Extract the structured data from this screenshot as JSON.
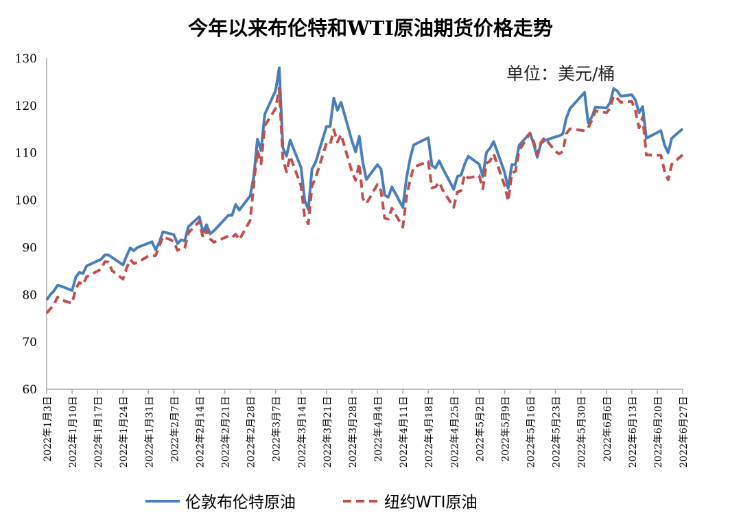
{
  "chart_data": {
    "type": "line",
    "title": "今年以来布伦特和WTI原油期货价格走势",
    "unit_label": "单位：美元/桶",
    "xlabel": "",
    "ylabel": "",
    "ylim": [
      60,
      130
    ],
    "yticks": [
      60,
      70,
      80,
      90,
      100,
      110,
      120,
      130
    ],
    "xticks": [
      "2022年1月3日",
      "2022年1月10日",
      "2022年1月17日",
      "2022年1月24日",
      "2022年1月31日",
      "2022年2月7日",
      "2022年2月14日",
      "2022年2月21日",
      "2022年2月28日",
      "2022年3月7日",
      "2022年3月14日",
      "2022年3月21日",
      "2022年3月28日",
      "2022年4月4日",
      "2022年4月11日",
      "2022年4月18日",
      "2022年4月25日",
      "2022年5月2日",
      "2022年5月9日",
      "2022年5月16日",
      "2022年5月23日",
      "2022年5月30日",
      "2022年6月6日",
      "2022年6月13日",
      "2022年6月20日",
      "2022年6月27日"
    ],
    "grid": false,
    "legend_position": "bottom",
    "series": [
      {
        "name": "伦敦布伦特原油",
        "color": "#4a7ebb",
        "style": "solid",
        "points": [
          [
            "2022-01-03",
            78.9
          ],
          [
            "2022-01-04",
            80.0
          ],
          [
            "2022-01-05",
            80.8
          ],
          [
            "2022-01-06",
            82.0
          ],
          [
            "2022-01-07",
            81.8
          ],
          [
            "2022-01-10",
            80.9
          ],
          [
            "2022-01-11",
            83.7
          ],
          [
            "2022-01-12",
            84.7
          ],
          [
            "2022-01-13",
            84.5
          ],
          [
            "2022-01-14",
            86.1
          ],
          [
            "2022-01-18",
            87.5
          ],
          [
            "2022-01-19",
            88.4
          ],
          [
            "2022-01-20",
            88.4
          ],
          [
            "2022-01-21",
            87.9
          ],
          [
            "2022-01-24",
            86.3
          ],
          [
            "2022-01-25",
            88.2
          ],
          [
            "2022-01-26",
            89.9
          ],
          [
            "2022-01-27",
            89.3
          ],
          [
            "2022-01-28",
            90.0
          ],
          [
            "2022-02-01",
            91.2
          ],
          [
            "2022-02-02",
            89.5
          ],
          [
            "2022-02-03",
            91.1
          ],
          [
            "2022-02-04",
            93.3
          ],
          [
            "2022-02-07",
            92.7
          ],
          [
            "2022-02-08",
            90.8
          ],
          [
            "2022-02-09",
            91.6
          ],
          [
            "2022-02-10",
            91.4
          ],
          [
            "2022-02-11",
            94.4
          ],
          [
            "2022-02-14",
            96.5
          ],
          [
            "2022-02-15",
            93.3
          ],
          [
            "2022-02-16",
            94.8
          ],
          [
            "2022-02-17",
            92.9
          ],
          [
            "2022-02-18",
            93.5
          ],
          [
            "2022-02-22",
            96.8
          ],
          [
            "2022-02-23",
            96.8
          ],
          [
            "2022-02-24",
            99.1
          ],
          [
            "2022-02-25",
            97.9
          ],
          [
            "2022-02-28",
            100.9
          ],
          [
            "2022-03-01",
            105.0
          ],
          [
            "2022-03-02",
            112.9
          ],
          [
            "2022-03-03",
            110.5
          ],
          [
            "2022-03-04",
            118.1
          ],
          [
            "2022-03-07",
            123.2
          ],
          [
            "2022-03-08",
            128.0
          ],
          [
            "2022-03-09",
            111.1
          ],
          [
            "2022-03-10",
            109.3
          ],
          [
            "2022-03-11",
            112.7
          ],
          [
            "2022-03-14",
            106.9
          ],
          [
            "2022-03-15",
            99.9
          ],
          [
            "2022-03-16",
            98.0
          ],
          [
            "2022-03-17",
            106.6
          ],
          [
            "2022-03-18",
            108.0
          ],
          [
            "2022-03-21",
            115.6
          ],
          [
            "2022-03-22",
            115.6
          ],
          [
            "2022-03-23",
            121.6
          ],
          [
            "2022-03-24",
            119.0
          ],
          [
            "2022-03-25",
            120.7
          ],
          [
            "2022-03-28",
            112.5
          ],
          [
            "2022-03-29",
            110.2
          ],
          [
            "2022-03-30",
            113.5
          ],
          [
            "2022-03-31",
            107.9
          ],
          [
            "2022-04-01",
            104.4
          ],
          [
            "2022-04-04",
            107.5
          ],
          [
            "2022-04-05",
            106.6
          ],
          [
            "2022-04-06",
            101.1
          ],
          [
            "2022-04-07",
            100.6
          ],
          [
            "2022-04-08",
            102.8
          ],
          [
            "2022-04-11",
            98.5
          ],
          [
            "2022-04-12",
            104.6
          ],
          [
            "2022-04-13",
            108.8
          ],
          [
            "2022-04-14",
            111.7
          ],
          [
            "2022-04-18",
            113.2
          ],
          [
            "2022-04-19",
            107.3
          ],
          [
            "2022-04-20",
            106.8
          ],
          [
            "2022-04-21",
            108.3
          ],
          [
            "2022-04-22",
            106.7
          ],
          [
            "2022-04-25",
            102.3
          ],
          [
            "2022-04-26",
            105.0
          ],
          [
            "2022-04-27",
            105.3
          ],
          [
            "2022-04-28",
            107.6
          ],
          [
            "2022-04-29",
            109.3
          ],
          [
            "2022-05-02",
            107.6
          ],
          [
            "2022-05-03",
            105.0
          ],
          [
            "2022-05-04",
            110.1
          ],
          [
            "2022-05-05",
            111.0
          ],
          [
            "2022-05-06",
            112.4
          ],
          [
            "2022-05-09",
            105.9
          ],
          [
            "2022-05-10",
            102.5
          ],
          [
            "2022-05-11",
            107.5
          ],
          [
            "2022-05-12",
            107.5
          ],
          [
            "2022-05-13",
            111.6
          ],
          [
            "2022-05-16",
            114.2
          ],
          [
            "2022-05-17",
            111.9
          ],
          [
            "2022-05-18",
            109.1
          ],
          [
            "2022-05-19",
            112.0
          ],
          [
            "2022-05-20",
            112.6
          ],
          [
            "2022-05-23",
            113.4
          ],
          [
            "2022-05-24",
            113.6
          ],
          [
            "2022-05-25",
            114.0
          ],
          [
            "2022-05-26",
            117.4
          ],
          [
            "2022-05-27",
            119.4
          ],
          [
            "2022-05-31",
            122.8
          ],
          [
            "2022-06-01",
            116.3
          ],
          [
            "2022-06-02",
            117.6
          ],
          [
            "2022-06-03",
            119.7
          ],
          [
            "2022-06-06",
            119.5
          ],
          [
            "2022-06-07",
            120.6
          ],
          [
            "2022-06-08",
            123.6
          ],
          [
            "2022-06-09",
            123.1
          ],
          [
            "2022-06-10",
            122.0
          ],
          [
            "2022-06-13",
            122.3
          ],
          [
            "2022-06-14",
            121.2
          ],
          [
            "2022-06-15",
            118.5
          ],
          [
            "2022-06-16",
            119.8
          ],
          [
            "2022-06-17",
            113.1
          ],
          [
            "2022-06-21",
            114.7
          ],
          [
            "2022-06-22",
            111.7
          ],
          [
            "2022-06-23",
            110.0
          ],
          [
            "2022-06-24",
            113.1
          ],
          [
            "2022-06-27",
            115.1
          ]
        ]
      },
      {
        "name": "纽约WTI原油",
        "color": "#c0504d",
        "style": "dashed",
        "points": [
          [
            "2022-01-03",
            76.1
          ],
          [
            "2022-01-04",
            77.0
          ],
          [
            "2022-01-05",
            77.9
          ],
          [
            "2022-01-06",
            79.5
          ],
          [
            "2022-01-07",
            78.9
          ],
          [
            "2022-01-10",
            78.2
          ],
          [
            "2022-01-11",
            81.2
          ],
          [
            "2022-01-12",
            82.6
          ],
          [
            "2022-01-13",
            82.1
          ],
          [
            "2022-01-14",
            83.8
          ],
          [
            "2022-01-18",
            85.4
          ],
          [
            "2022-01-19",
            87.0
          ],
          [
            "2022-01-20",
            86.9
          ],
          [
            "2022-01-21",
            85.1
          ],
          [
            "2022-01-24",
            83.3
          ],
          [
            "2022-01-25",
            85.6
          ],
          [
            "2022-01-26",
            87.4
          ],
          [
            "2022-01-27",
            86.6
          ],
          [
            "2022-01-28",
            86.8
          ],
          [
            "2022-01-31",
            88.2
          ],
          [
            "2022-02-01",
            88.2
          ],
          [
            "2022-02-02",
            88.3
          ],
          [
            "2022-02-03",
            90.3
          ],
          [
            "2022-02-04",
            92.3
          ],
          [
            "2022-02-07",
            91.3
          ],
          [
            "2022-02-08",
            89.4
          ],
          [
            "2022-02-09",
            89.7
          ],
          [
            "2022-02-10",
            89.9
          ],
          [
            "2022-02-11",
            93.1
          ],
          [
            "2022-02-14",
            95.5
          ],
          [
            "2022-02-15",
            92.1
          ],
          [
            "2022-02-16",
            93.7
          ],
          [
            "2022-02-17",
            91.8
          ],
          [
            "2022-02-18",
            91.1
          ],
          [
            "2022-02-22",
            92.4
          ],
          [
            "2022-02-23",
            92.1
          ],
          [
            "2022-02-24",
            92.8
          ],
          [
            "2022-02-25",
            91.6
          ],
          [
            "2022-02-28",
            95.7
          ],
          [
            "2022-03-01",
            103.4
          ],
          [
            "2022-03-02",
            110.6
          ],
          [
            "2022-03-03",
            107.7
          ],
          [
            "2022-03-04",
            115.7
          ],
          [
            "2022-03-07",
            119.4
          ],
          [
            "2022-03-08",
            123.7
          ],
          [
            "2022-03-09",
            108.7
          ],
          [
            "2022-03-10",
            106.0
          ],
          [
            "2022-03-11",
            109.3
          ],
          [
            "2022-03-14",
            103.0
          ],
          [
            "2022-03-15",
            96.4
          ],
          [
            "2022-03-16",
            95.0
          ],
          [
            "2022-03-17",
            103.0
          ],
          [
            "2022-03-18",
            104.7
          ],
          [
            "2022-03-21",
            112.1
          ],
          [
            "2022-03-22",
            111.8
          ],
          [
            "2022-03-23",
            114.9
          ],
          [
            "2022-03-24",
            112.3
          ],
          [
            "2022-03-25",
            113.9
          ],
          [
            "2022-03-28",
            106.0
          ],
          [
            "2022-03-29",
            104.2
          ],
          [
            "2022-03-30",
            107.8
          ],
          [
            "2022-03-31",
            100.3
          ],
          [
            "2022-04-01",
            99.3
          ],
          [
            "2022-04-04",
            103.3
          ],
          [
            "2022-04-05",
            102.0
          ],
          [
            "2022-04-06",
            96.2
          ],
          [
            "2022-04-07",
            96.0
          ],
          [
            "2022-04-08",
            98.3
          ],
          [
            "2022-04-11",
            94.3
          ],
          [
            "2022-04-12",
            100.6
          ],
          [
            "2022-04-13",
            104.3
          ],
          [
            "2022-04-14",
            107.0
          ],
          [
            "2022-04-18",
            108.2
          ],
          [
            "2022-04-19",
            102.6
          ],
          [
            "2022-04-20",
            102.8
          ],
          [
            "2022-04-21",
            103.8
          ],
          [
            "2022-04-22",
            102.1
          ],
          [
            "2022-04-25",
            98.5
          ],
          [
            "2022-04-26",
            101.7
          ],
          [
            "2022-04-27",
            102.0
          ],
          [
            "2022-04-28",
            105.4
          ],
          [
            "2022-04-29",
            104.7
          ],
          [
            "2022-05-02",
            105.2
          ],
          [
            "2022-05-03",
            102.4
          ],
          [
            "2022-05-04",
            107.8
          ],
          [
            "2022-05-05",
            108.3
          ],
          [
            "2022-05-06",
            109.8
          ],
          [
            "2022-05-09",
            103.1
          ],
          [
            "2022-05-10",
            99.8
          ],
          [
            "2022-05-11",
            105.7
          ],
          [
            "2022-05-12",
            106.1
          ],
          [
            "2022-05-13",
            110.5
          ],
          [
            "2022-05-16",
            114.2
          ],
          [
            "2022-05-17",
            112.4
          ],
          [
            "2022-05-18",
            109.6
          ],
          [
            "2022-05-19",
            112.2
          ],
          [
            "2022-05-20",
            113.2
          ],
          [
            "2022-05-23",
            110.3
          ],
          [
            "2022-05-24",
            109.8
          ],
          [
            "2022-05-25",
            110.3
          ],
          [
            "2022-05-26",
            114.1
          ],
          [
            "2022-05-27",
            115.1
          ],
          [
            "2022-05-31",
            114.7
          ],
          [
            "2022-06-01",
            115.3
          ],
          [
            "2022-06-02",
            116.9
          ],
          [
            "2022-06-03",
            118.9
          ],
          [
            "2022-06-06",
            118.5
          ],
          [
            "2022-06-07",
            119.4
          ],
          [
            "2022-06-08",
            122.1
          ],
          [
            "2022-06-09",
            121.5
          ],
          [
            "2022-06-10",
            120.7
          ],
          [
            "2022-06-13",
            120.9
          ],
          [
            "2022-06-14",
            118.9
          ],
          [
            "2022-06-15",
            115.3
          ],
          [
            "2022-06-16",
            117.6
          ],
          [
            "2022-06-17",
            109.6
          ],
          [
            "2022-06-21",
            109.5
          ],
          [
            "2022-06-22",
            106.2
          ],
          [
            "2022-06-23",
            104.3
          ],
          [
            "2022-06-24",
            107.6
          ],
          [
            "2022-06-27",
            109.6
          ]
        ]
      }
    ]
  }
}
